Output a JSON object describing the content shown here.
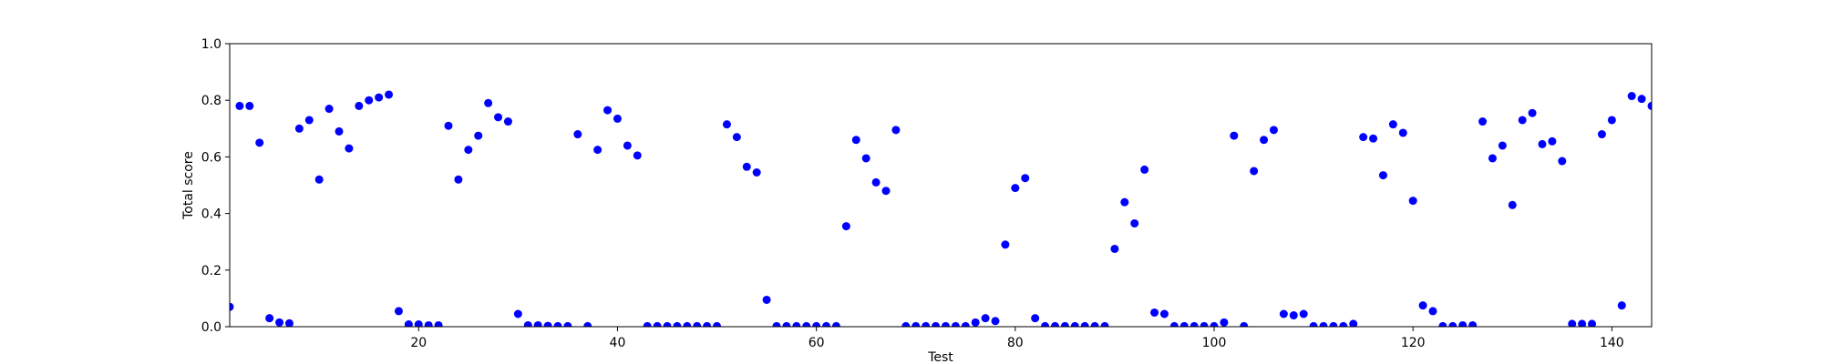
{
  "chart_data": {
    "type": "scatter",
    "title": "",
    "xlabel": "Test",
    "ylabel": "Total score",
    "xlim": [
      1,
      144
    ],
    "ylim": [
      0.0,
      1.0
    ],
    "grid": false,
    "marker_color": "#0000ff",
    "x_ticks": [
      20,
      40,
      60,
      80,
      100,
      120,
      140
    ],
    "x_tick_labels": [
      "20",
      "40",
      "60",
      "80",
      "100",
      "120",
      "140"
    ],
    "y_ticks": [
      0.0,
      0.2,
      0.4,
      0.6,
      0.8,
      1.0
    ],
    "y_tick_labels": [
      "0.0",
      "0.2",
      "0.4",
      "0.6",
      "0.8",
      "1.0"
    ],
    "series": [
      {
        "x": [
          1,
          2,
          3,
          4,
          5,
          6,
          7,
          8,
          9,
          10,
          11,
          12,
          13,
          14,
          15,
          16,
          17,
          18,
          19,
          20,
          21,
          22,
          23,
          24,
          25,
          26,
          27,
          28,
          29,
          30,
          31,
          32,
          33,
          34,
          35,
          36,
          37,
          38,
          39,
          40,
          41,
          42,
          43,
          44,
          45,
          46,
          47,
          48,
          49,
          50,
          51,
          52,
          53,
          54,
          55,
          56,
          57,
          58,
          59,
          60,
          61,
          62,
          63,
          64,
          65,
          66,
          67,
          68,
          69,
          70,
          71,
          72,
          73,
          74,
          75,
          76,
          77,
          78,
          79,
          80,
          81,
          82,
          83,
          84,
          85,
          86,
          87,
          88,
          89,
          90,
          91,
          92,
          93,
          94,
          95,
          96,
          97,
          98,
          99,
          100,
          101,
          102,
          103,
          104,
          105,
          106,
          107,
          108,
          109,
          110,
          111,
          112,
          113,
          114,
          115,
          116,
          117,
          118,
          119,
          120,
          121,
          122,
          123,
          124,
          125,
          126,
          127,
          128,
          129,
          130,
          131,
          132,
          133,
          134,
          135,
          136,
          137,
          138,
          139,
          140,
          141,
          142,
          143,
          144
        ],
        "y": [
          0.07,
          0.78,
          0.78,
          0.65,
          0.03,
          0.015,
          0.012,
          0.7,
          0.73,
          0.52,
          0.77,
          0.69,
          0.63,
          0.78,
          0.8,
          0.81,
          0.82,
          0.055,
          0.008,
          0.008,
          0.005,
          0.005,
          0.71,
          0.52,
          0.625,
          0.675,
          0.79,
          0.74,
          0.725,
          0.045,
          0.005,
          0.005,
          0.003,
          0.002,
          0.002,
          0.68,
          0.002,
          0.625,
          0.765,
          0.735,
          0.64,
          0.605,
          0.002,
          0.002,
          0.002,
          0.002,
          0.002,
          0.002,
          0.002,
          0.002,
          0.715,
          0.67,
          0.565,
          0.545,
          0.095,
          0.002,
          0.002,
          0.002,
          0.002,
          0.002,
          0.002,
          0.002,
          0.355,
          0.66,
          0.595,
          0.51,
          0.48,
          0.695,
          0.002,
          0.002,
          0.002,
          0.002,
          0.002,
          0.002,
          0.002,
          0.015,
          0.03,
          0.02,
          0.29,
          0.49,
          0.525,
          0.03,
          0.002,
          0.002,
          0.002,
          0.002,
          0.002,
          0.002,
          0.002,
          0.275,
          0.44,
          0.365,
          0.555,
          0.05,
          0.045,
          0.002,
          0.002,
          0.002,
          0.002,
          0.002,
          0.015,
          0.675,
          0.002,
          0.55,
          0.66,
          0.695,
          0.045,
          0.04,
          0.045,
          0.002,
          0.002,
          0.002,
          0.002,
          0.01,
          0.67,
          0.665,
          0.535,
          0.715,
          0.685,
          0.445,
          0.075,
          0.055,
          0.002,
          0.002,
          0.005,
          0.005,
          0.725,
          0.595,
          0.64,
          0.43,
          0.73,
          0.755,
          0.645,
          0.655,
          0.585,
          0.01,
          0.01,
          0.01,
          0.68,
          0.73,
          0.075,
          0.815,
          0.805,
          0.78
        ]
      }
    ]
  }
}
